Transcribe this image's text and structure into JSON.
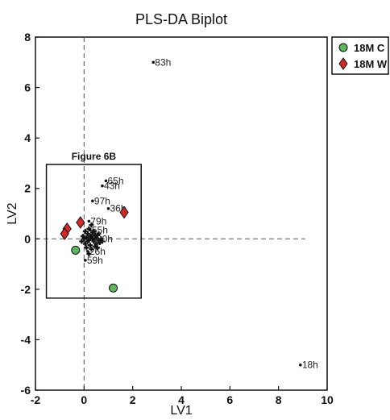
{
  "chart_data": {
    "type": "scatter",
    "title": "PLS-DA Biplot",
    "xlabel": "LV1",
    "ylabel": "LV2",
    "xlim": [
      -2,
      10
    ],
    "ylim": [
      -6,
      8
    ],
    "xticks": [
      -2,
      0,
      2,
      4,
      6,
      8,
      10
    ],
    "yticks": [
      -6,
      -4,
      -2,
      0,
      2,
      4,
      6,
      8
    ],
    "grid": false,
    "legend_position": "top-right",
    "reference_lines": {
      "x": 0,
      "y": 0,
      "style": "dashed"
    },
    "series": [
      {
        "name": "18M C",
        "marker": "circle",
        "color": "#5cb85c",
        "points": [
          {
            "x": -0.35,
            "y": -0.45
          },
          {
            "x": 1.2,
            "y": -1.95
          }
        ]
      },
      {
        "name": "18M W",
        "marker": "diamond",
        "color": "#d62728",
        "points": [
          {
            "x": -0.15,
            "y": 0.65
          },
          {
            "x": -0.7,
            "y": 0.4
          },
          {
            "x": -0.8,
            "y": 0.2
          },
          {
            "x": 1.65,
            "y": 1.05
          }
        ]
      }
    ],
    "loadings": {
      "labeled": [
        {
          "label": "83h",
          "x": 2.85,
          "y": 7.0
        },
        {
          "label": "18h",
          "x": 8.9,
          "y": -5.0
        },
        {
          "label": "65h",
          "x": 0.9,
          "y": 2.3
        },
        {
          "label": "43h",
          "x": 0.75,
          "y": 2.1
        },
        {
          "label": "97h",
          "x": 0.35,
          "y": 1.5
        },
        {
          "label": "36h",
          "x": 1.0,
          "y": 1.2
        },
        {
          "label": "79h",
          "x": 0.2,
          "y": 0.7
        },
        {
          "label": "55h",
          "x": 0.25,
          "y": 0.35
        },
        {
          "label": "20h",
          "x": 0.45,
          "y": 0.0
        },
        {
          "label": "26h",
          "x": 0.15,
          "y": -0.5
        },
        {
          "label": "59h",
          "x": 0.05,
          "y": -0.85
        }
      ],
      "unlabeled": [
        {
          "x": 0.0,
          "y": 0.0
        },
        {
          "x": 0.1,
          "y": 0.05
        },
        {
          "x": 0.2,
          "y": -0.05
        },
        {
          "x": 0.3,
          "y": 0.1
        },
        {
          "x": 0.4,
          "y": -0.1
        },
        {
          "x": 0.5,
          "y": 0.05
        },
        {
          "x": 0.6,
          "y": -0.05
        },
        {
          "x": 0.05,
          "y": -0.2
        },
        {
          "x": 0.15,
          "y": 0.2
        },
        {
          "x": 0.25,
          "y": -0.25
        },
        {
          "x": 0.35,
          "y": 0.25
        },
        {
          "x": 0.45,
          "y": -0.3
        },
        {
          "x": 0.55,
          "y": 0.15
        },
        {
          "x": 0.65,
          "y": -0.15
        },
        {
          "x": -0.05,
          "y": 0.1
        },
        {
          "x": -0.1,
          "y": -0.1
        },
        {
          "x": 0.2,
          "y": 0.4
        },
        {
          "x": 0.3,
          "y": -0.4
        },
        {
          "x": 0.1,
          "y": -0.35
        },
        {
          "x": 0.4,
          "y": 0.3
        },
        {
          "x": 0.5,
          "y": -0.2
        },
        {
          "x": 0.7,
          "y": 0.0
        },
        {
          "x": 0.35,
          "y": 0.0
        },
        {
          "x": 0.25,
          "y": 0.1
        },
        {
          "x": 0.15,
          "y": -0.1
        },
        {
          "x": 0.45,
          "y": 0.15
        },
        {
          "x": 0.6,
          "y": 0.2
        },
        {
          "x": 0.05,
          "y": 0.3
        },
        {
          "x": 0.3,
          "y": 0.55
        },
        {
          "x": 0.2,
          "y": -0.6
        },
        {
          "x": 0.55,
          "y": -0.35
        },
        {
          "x": 0.75,
          "y": -0.1
        }
      ]
    },
    "annotation": {
      "label": "Figure 6B",
      "region": {
        "x0": -1.55,
        "x1": 2.35,
        "y0": -2.35,
        "y1": 2.95
      }
    }
  }
}
